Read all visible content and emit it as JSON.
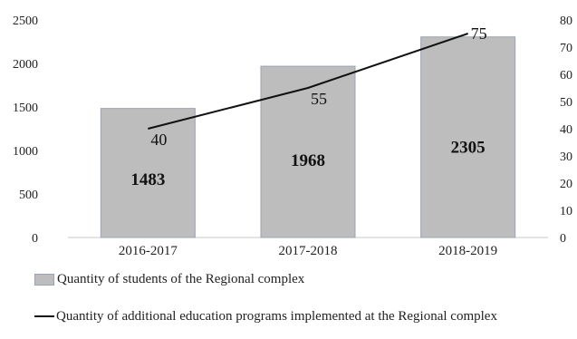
{
  "chart_data": {
    "type": "bar",
    "categories": [
      "2016-2017",
      "2017-2018",
      "2018-2019"
    ],
    "series": [
      {
        "name": "Quantity of students of the Regional complex",
        "type": "bar",
        "axis": "left",
        "values": [
          1483,
          1968,
          2305
        ],
        "color": "#bdbdbd"
      },
      {
        "name": "Quantity of additional education programs  implemented at the Regional complex",
        "type": "line",
        "axis": "right",
        "values": [
          40,
          55,
          75
        ],
        "color": "#111111"
      }
    ],
    "ylim_left": [
      0,
      2500
    ],
    "yticks_left": [
      "0",
      "500",
      "1000",
      "1500",
      "2000",
      "2500"
    ],
    "ylim_right": [
      0,
      80
    ],
    "yticks_right": [
      "0",
      "10",
      "20",
      "30",
      "40",
      "50",
      "60",
      "70",
      "80"
    ],
    "grid": false,
    "legend_position": "bottom"
  }
}
